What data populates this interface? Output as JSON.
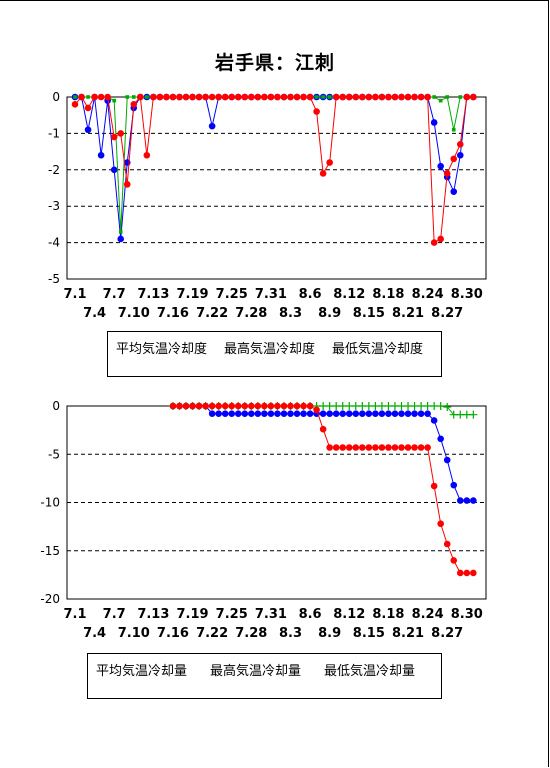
{
  "title": "岩手県：江刺",
  "chart_data": [
    {
      "type": "line",
      "ylim": [
        -5,
        0
      ],
      "yticks": [
        0,
        -1,
        -2,
        -3,
        -4,
        -5
      ],
      "x_tick_labels_row1": [
        "7.1",
        "7.7",
        "7.13",
        "7.19",
        "7.25",
        "7.31",
        "8.6",
        "8.12",
        "8.18",
        "8.24",
        "8.30"
      ],
      "x_tick_labels_row2": [
        "7.4",
        "7.10",
        "7.16",
        "7.22",
        "7.28",
        "8.3",
        "8.9",
        "8.15",
        "8.21",
        "8.27"
      ],
      "grid": "horizontal dashed",
      "legend_placement": "bottom",
      "series": [
        {
          "name": "平均気温冷却度",
          "color": "#0000ff",
          "marker": "circle",
          "values": [
            0,
            0,
            -0.9,
            0,
            -1.6,
            -0.1,
            -2.0,
            -3.9,
            -1.8,
            -0.3,
            0,
            0,
            0,
            0,
            0,
            0,
            0,
            0,
            0,
            0,
            0,
            -0.8,
            0,
            0,
            0,
            0,
            0,
            0,
            0,
            0,
            0,
            0,
            0,
            0,
            0,
            0,
            0,
            0,
            0,
            0,
            0,
            0,
            0,
            0,
            0,
            0,
            0,
            0,
            0,
            0,
            0,
            0,
            0,
            0,
            0,
            -0.7,
            -1.9,
            -2.2,
            -2.6,
            -1.6,
            0,
            0
          ]
        },
        {
          "name": "最高気温冷却度",
          "color": "#00aa00",
          "marker": "square",
          "values": [
            0,
            0,
            0,
            0,
            0,
            0,
            -0.1,
            -3.7,
            0,
            0,
            0,
            0,
            0,
            0,
            0,
            0,
            0,
            0,
            0,
            0,
            0,
            0,
            0,
            0,
            0,
            0,
            0,
            0,
            0,
            0,
            0,
            0,
            0,
            0,
            0,
            0,
            0,
            0,
            0,
            0,
            0,
            0,
            0,
            0,
            0,
            0,
            0,
            0,
            0,
            0,
            0,
            0,
            0,
            0,
            0,
            0,
            -0.1,
            0,
            -0.9,
            0,
            0,
            0
          ]
        },
        {
          "name": "最低気温冷却度",
          "color": "#ff0000",
          "marker": "circle",
          "values": [
            -0.2,
            0,
            -0.3,
            0,
            0,
            0,
            -1.1,
            -1.0,
            -2.4,
            -0.2,
            0,
            -1.6,
            0,
            0,
            0,
            0,
            0,
            0,
            0,
            0,
            0,
            0,
            0,
            0,
            0,
            0,
            0,
            0,
            0,
            0,
            0,
            0,
            0,
            0,
            0,
            0,
            0,
            -0.4,
            -2.1,
            -1.8,
            0,
            0,
            0,
            0,
            0,
            0,
            0,
            0,
            0,
            0,
            0,
            0,
            0,
            0,
            0,
            -4.0,
            -3.9,
            -2.1,
            -1.7,
            -1.3,
            0,
            0
          ]
        }
      ]
    },
    {
      "type": "line",
      "ylim": [
        -20,
        0
      ],
      "yticks": [
        0,
        -5,
        -10,
        -15,
        -20
      ],
      "x_tick_labels_row1": [
        "7.1",
        "7.7",
        "7.13",
        "7.19",
        "7.25",
        "7.31",
        "8.6",
        "8.12",
        "8.18",
        "8.24",
        "8.30"
      ],
      "x_tick_labels_row2": [
        "7.4",
        "7.10",
        "7.16",
        "7.22",
        "7.28",
        "8.3",
        "8.9",
        "8.15",
        "8.21",
        "8.27"
      ],
      "grid": "horizontal dashed",
      "legend_placement": "bottom",
      "series": [
        {
          "name": "平均気温冷却量",
          "color": "#0000ff",
          "marker": "circle",
          "start_index": 15,
          "values": [
            0,
            0,
            0,
            0,
            0,
            0,
            -0.8,
            -0.8,
            -0.8,
            -0.8,
            -0.8,
            -0.8,
            -0.8,
            -0.8,
            -0.8,
            -0.8,
            -0.8,
            -0.8,
            -0.8,
            -0.8,
            -0.8,
            -0.8,
            -0.8,
            -0.8,
            -0.8,
            -0.8,
            -0.8,
            -0.8,
            -0.8,
            -0.8,
            -0.8,
            -0.8,
            -0.8,
            -0.8,
            -0.8,
            -0.8,
            -0.8,
            -0.8,
            -0.8,
            -0.8,
            -1.5,
            -3.4,
            -5.6,
            -8.2,
            -9.8,
            -9.8,
            -9.8
          ]
        },
        {
          "name": "最高気温冷却量",
          "color": "#00aa00",
          "marker": "plus",
          "start_index": 15,
          "values": [
            0,
            0,
            0,
            0,
            0,
            0,
            0,
            0,
            0,
            0,
            0,
            0,
            0,
            0,
            0,
            0,
            0,
            0,
            0,
            0,
            0,
            0,
            0,
            0,
            0,
            0,
            0,
            0,
            0,
            0,
            0,
            0,
            0,
            0,
            0,
            0,
            0,
            0,
            0,
            0,
            0,
            0,
            -0.1,
            -0.9,
            -0.9,
            -0.9,
            -0.9
          ]
        },
        {
          "name": "最低気温冷却量",
          "color": "#ff0000",
          "marker": "circle",
          "start_index": 15,
          "values": [
            0,
            0,
            0,
            0,
            0,
            0,
            0,
            0,
            0,
            0,
            0,
            0,
            0,
            0,
            0,
            0,
            0,
            0,
            0,
            0,
            0,
            0,
            -0.4,
            -2.4,
            -4.3,
            -4.3,
            -4.3,
            -4.3,
            -4.3,
            -4.3,
            -4.3,
            -4.3,
            -4.3,
            -4.3,
            -4.3,
            -4.3,
            -4.3,
            -4.3,
            -4.3,
            -4.3,
            -8.3,
            -12.2,
            -14.3,
            -16.0,
            -17.3,
            -17.3,
            -17.3
          ]
        }
      ]
    }
  ]
}
